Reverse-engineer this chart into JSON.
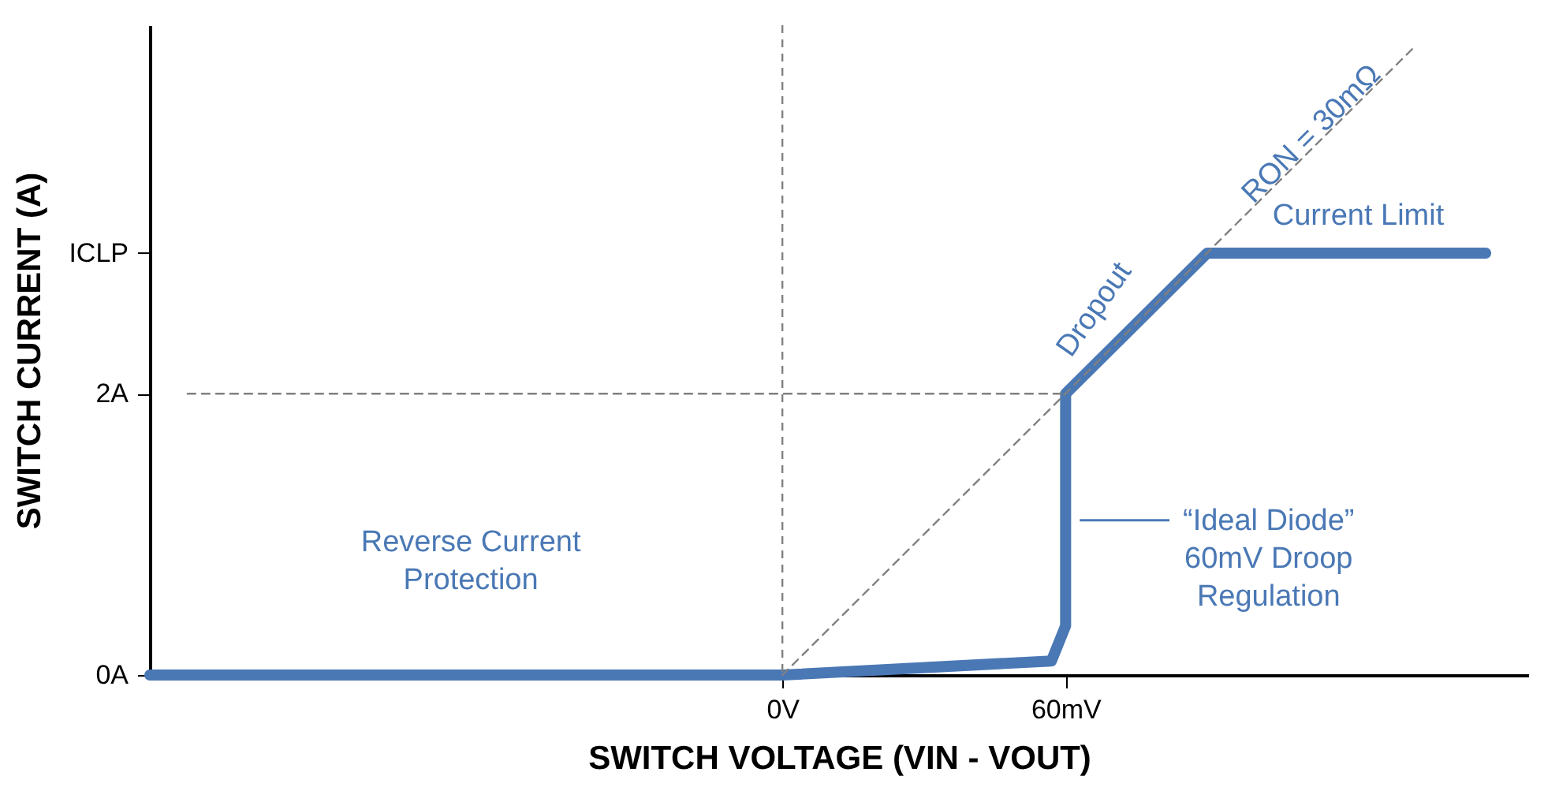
{
  "chart_data": {
    "type": "line",
    "xlabel": "SWITCH VOLTAGE (VIN - VOUT)",
    "ylabel": "SWITCH CURRENT (A)",
    "xlim": [
      -134,
      158
    ],
    "ylim": [
      0,
      4.62
    ],
    "xticks": [
      {
        "value": 0,
        "label": "0V"
      },
      {
        "value": 60,
        "label": "60mV"
      }
    ],
    "yticks": [
      {
        "value": 0,
        "label": "0A"
      },
      {
        "value": 2,
        "label": "2A"
      },
      {
        "value": 3,
        "label": "ICLP"
      }
    ],
    "grid": false,
    "marker": "none",
    "series": [
      {
        "color": "#4a78b5",
        "line_style": "solid",
        "x": [
          -134,
          0,
          57,
          60,
          60,
          90,
          149
        ],
        "values": [
          0,
          0,
          0.1,
          0.35,
          2,
          3,
          3
        ]
      },
      {
        "type": "line",
        "color": "#808080",
        "line_style": "dashed",
        "x": [
          0,
          134
        ],
        "values": [
          0,
          4.47
        ]
      },
      {
        "type": "line",
        "color": "#808080",
        "line_style": "dashed",
        "x": [
          -126,
          60
        ],
        "values": [
          2,
          2
        ]
      }
    ],
    "ref_lines": [
      {
        "axis": "x",
        "value": 0,
        "color": "#808080",
        "line_style": "dashed"
      }
    ],
    "annotations": [
      "Reverse Current\nProtection",
      "Dropout",
      "Current Limit",
      "“Ideal Diode”\n60mV Droop\nRegulation",
      "RON = 30mΩ"
    ]
  }
}
